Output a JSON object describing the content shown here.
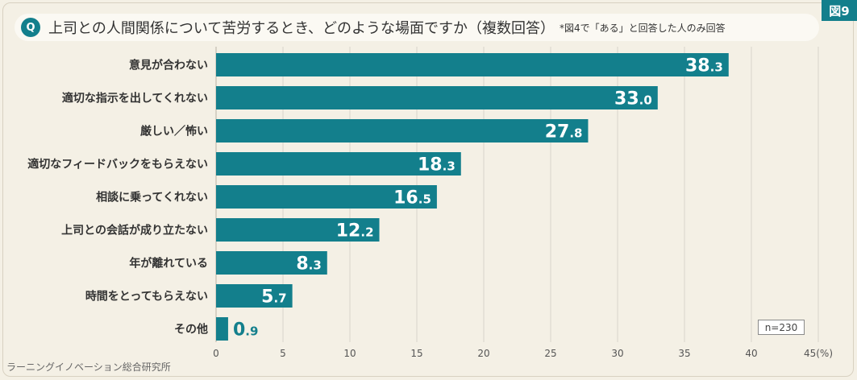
{
  "figure_label": "図9",
  "header": {
    "badge": "Q",
    "note": "*図4で「ある」と回答した人のみ回答"
  },
  "chart_data": {
    "type": "bar",
    "orientation": "horizontal",
    "title": "上司との人間関係について苦労するとき、どのような場面ですか（複数回答）",
    "categories": [
      "意見が合わない",
      "適切な指示を出してくれない",
      "厳しい／怖い",
      "適切なフィードバックをもらえない",
      "相談に乗ってくれない",
      "上司との会話が成り立たない",
      "年が離れている",
      "時間をとってもらえない",
      "その他"
    ],
    "values": [
      38.3,
      33.0,
      27.8,
      18.3,
      16.5,
      12.2,
      8.3,
      5.7,
      0.9
    ],
    "xlim": [
      0,
      45
    ],
    "x_ticks": [
      0,
      5,
      10,
      15,
      20,
      25,
      30,
      35,
      40,
      45
    ],
    "x_tick_labels": [
      "0",
      "5",
      "10",
      "15",
      "20",
      "25",
      "30",
      "35",
      "40",
      "45(%)"
    ],
    "grid": true,
    "sample_size": "n=230"
  },
  "source": "ラーニングイノベーション総合研究所",
  "colors": {
    "accent": "#137f8c",
    "background": "#f4f0e5",
    "text": "#333333",
    "value_label_inside": "#ffffff"
  }
}
